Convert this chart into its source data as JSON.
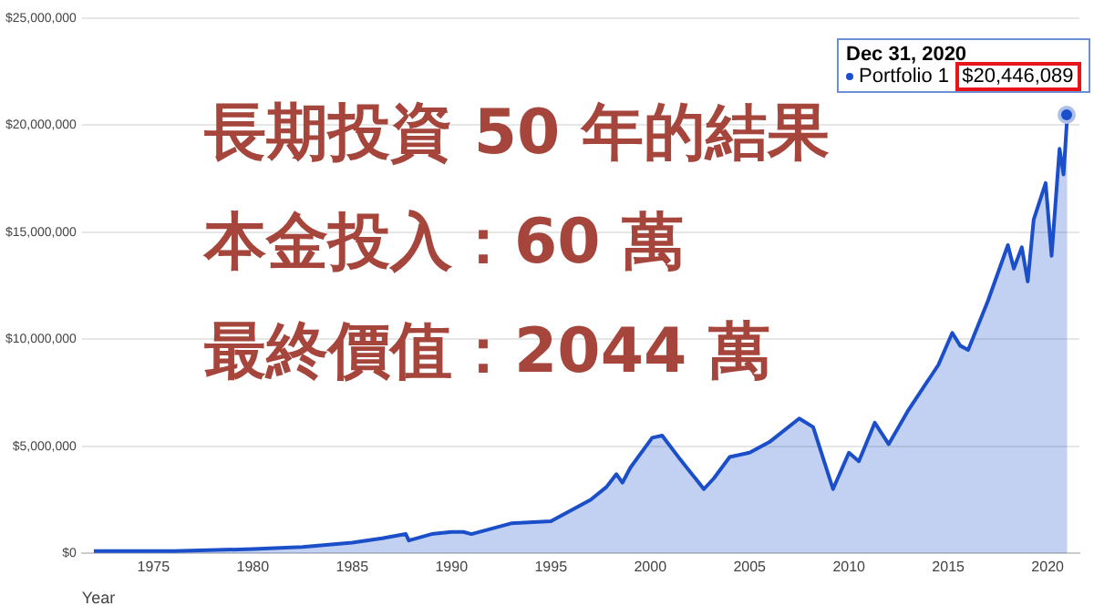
{
  "chart_data": {
    "type": "area",
    "xlabel": "Year",
    "xlim": [
      1971.4,
      2021.6
    ],
    "xticks": [
      1975,
      1980,
      1985,
      1990,
      1995,
      2000,
      2005,
      2010,
      2015,
      2020
    ],
    "ylim": [
      0,
      25000000
    ],
    "yticks": [
      {
        "value": 0,
        "label": "$0"
      },
      {
        "value": 5000000,
        "label": "$5,000,000"
      },
      {
        "value": 10000000,
        "label": "$10,000,000"
      },
      {
        "value": 15000000,
        "label": "$15,000,000"
      },
      {
        "value": 20000000,
        "label": "$20,000,000"
      },
      {
        "value": 25000000,
        "label": "$25,000,000"
      }
    ],
    "grid": "y",
    "legend": "top right",
    "marker": "none",
    "series": [
      {
        "name": "Portfolio 1",
        "color": "#1a4fc9",
        "x": [
          1972,
          1976,
          1980,
          1982.5,
          1985,
          1986.5,
          1987.7,
          1987.85,
          1989,
          1990,
          1990.6,
          1991,
          1993,
          1995,
          1996,
          1997,
          1997.8,
          1998.3,
          1998.6,
          1999,
          2000.1,
          2000.6,
          2001.5,
          2002.7,
          2003.2,
          2004,
          2005,
          2006,
          2007.5,
          2008.2,
          2009.2,
          2010,
          2010.5,
          2011.3,
          2012,
          2013,
          2014.5,
          2015.2,
          2015.6,
          2016,
          2017,
          2018,
          2018.3,
          2018.7,
          2019,
          2019.3,
          2019.9,
          2020.2,
          2020.6,
          2020.8,
          2020.99
        ],
        "values": [
          100000,
          100000,
          200000,
          300000,
          500000,
          700000,
          900000,
          600000,
          900000,
          1000000,
          1000000,
          900000,
          1400000,
          1500000,
          2000000,
          2500000,
          3100000,
          3700000,
          3300000,
          4000000,
          5400000,
          5500000,
          4400000,
          3000000,
          3500000,
          4500000,
          4700000,
          5200000,
          6300000,
          5900000,
          3000000,
          4700000,
          4300000,
          6100000,
          5100000,
          6700000,
          8800000,
          10300000,
          9700000,
          9500000,
          11800000,
          14400000,
          13300000,
          14300000,
          12700000,
          15600000,
          17300000,
          13900000,
          18900000,
          17700000,
          20446089
        ],
        "value_labels": [
          null,
          null,
          null,
          null,
          null,
          null,
          null,
          null,
          null,
          null,
          null,
          null,
          null,
          null,
          null,
          null,
          null,
          null,
          null,
          null,
          null,
          null,
          null,
          null,
          null,
          null,
          null,
          null,
          null,
          null,
          null,
          null,
          null,
          null,
          null,
          null,
          null,
          null,
          null,
          null,
          null,
          null,
          null,
          null,
          null,
          null,
          null,
          null,
          null,
          null,
          "$20,446,089"
        ]
      }
    ],
    "annotations": [
      "長期投資 50 年的結果",
      "本金投入：60 萬",
      "最終價值：2044 萬",
      "Dec 31, 2020"
    ]
  }
}
